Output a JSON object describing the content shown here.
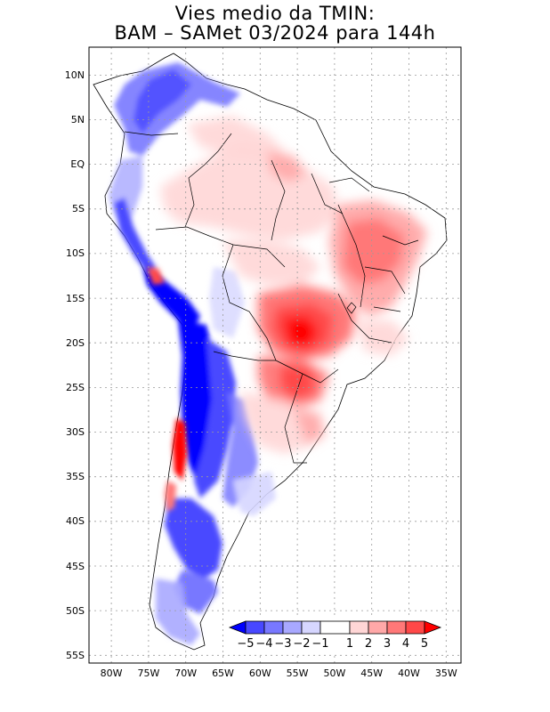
{
  "title": {
    "line1": "Vies medio da TMIN:",
    "line2": "BAM – SAMet 03/2024  para 144h"
  },
  "map": {
    "region": "South America",
    "lat_ticks": [
      "10N",
      "5N",
      "EQ",
      "5S",
      "10S",
      "15S",
      "20S",
      "25S",
      "30S",
      "35S",
      "40S",
      "45S",
      "50S",
      "55S"
    ],
    "lon_ticks": [
      "80W",
      "75W",
      "70W",
      "65W",
      "60W",
      "55W",
      "50W",
      "45W",
      "40W",
      "35W"
    ],
    "lon_range": [
      -83,
      -33
    ],
    "lat_range": [
      -56,
      13
    ],
    "gridlines": "dotted"
  },
  "colorbar": {
    "labels": [
      "−5",
      "−4",
      "−3",
      "−2",
      "−1",
      "1",
      "2",
      "3",
      "4",
      "5"
    ],
    "colors": [
      "#0000ff",
      "#4848ff",
      "#7878ff",
      "#a8a8ff",
      "#d6d6ff",
      "#ffffff",
      "#ffd6d6",
      "#ffa8a8",
      "#ff7878",
      "#ff4848",
      "#ff0000"
    ]
  }
}
